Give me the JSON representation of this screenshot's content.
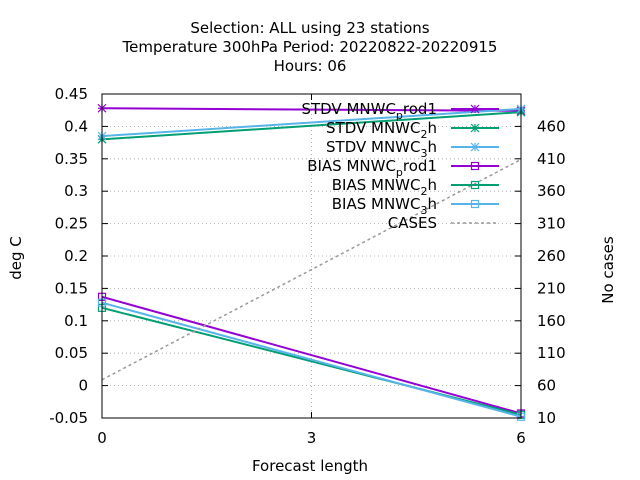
{
  "chart_data": {
    "type": "line",
    "title_lines": [
      "Selection: ALL using    23 stations",
      "Temperature 300hPa   Period: 20220822-20220915",
      "Hours:  06"
    ],
    "xlabel": "Forecast length",
    "ylabel": "deg C",
    "y2label": "No cases",
    "x_ticks": [
      0,
      3,
      6
    ],
    "y_ticks": [
      "0.45",
      "0.4",
      "0.35",
      "0.3",
      "0.25",
      "0.2",
      "0.15",
      "0.1",
      "0.05",
      "0",
      "-0.05"
    ],
    "y2_ticks": [
      460,
      410,
      360,
      310,
      260,
      210,
      160,
      110,
      60,
      10
    ],
    "xlim": [
      0,
      6
    ],
    "ylim": [
      -0.05,
      0.45
    ],
    "y2lim": [
      10,
      510
    ],
    "grid": "dotted",
    "legend_position": "top-right",
    "series": [
      {
        "name": "STDV MNWC",
        "sub": "p",
        "suffix": "rod1",
        "axis": "y",
        "color": "#9400d3",
        "marker": "star",
        "x": [
          0,
          6
        ],
        "y": [
          0.428,
          0.424
        ]
      },
      {
        "name": "STDV MNWC",
        "sub": "2",
        "suffix": "h",
        "axis": "y",
        "color": "#009e73",
        "marker": "star",
        "x": [
          0,
          6
        ],
        "y": [
          0.38,
          0.422
        ]
      },
      {
        "name": "STDV MNWC",
        "sub": "3",
        "suffix": "h",
        "axis": "y",
        "color": "#56b4e9",
        "marker": "star",
        "x": [
          0,
          6
        ],
        "y": [
          0.385,
          0.427
        ]
      },
      {
        "name": "BIAS MNWC",
        "sub": "p",
        "suffix": "rod1",
        "axis": "y",
        "color": "#9400d3",
        "marker": "square",
        "x": [
          0,
          6
        ],
        "y": [
          0.137,
          -0.043
        ]
      },
      {
        "name": "BIAS MNWC",
        "sub": "2",
        "suffix": "h",
        "axis": "y",
        "color": "#009e73",
        "marker": "square",
        "x": [
          0,
          6
        ],
        "y": [
          0.12,
          -0.045
        ]
      },
      {
        "name": "BIAS MNWC",
        "sub": "3",
        "suffix": "h",
        "axis": "y",
        "color": "#56b4e9",
        "marker": "square",
        "x": [
          0,
          6
        ],
        "y": [
          0.128,
          -0.048
        ]
      },
      {
        "name": "CASES",
        "sub": "",
        "suffix": "",
        "axis": "y2",
        "color": "#999999",
        "marker": "none",
        "dashed": true,
        "x": [
          0,
          6
        ],
        "y": [
          69,
          409
        ]
      }
    ]
  }
}
